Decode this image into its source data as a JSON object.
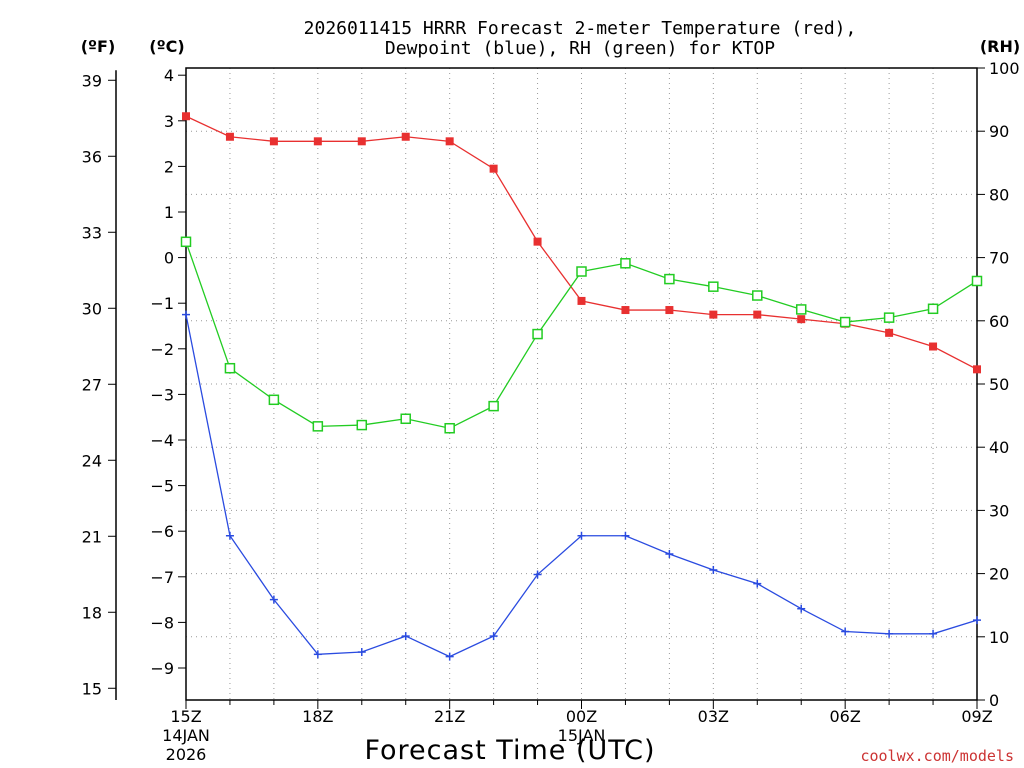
{
  "title": {
    "line1": "2026011415 HRRR Forecast 2-meter Temperature (red),",
    "line2": "Dewpoint (blue), RH (green) for KTOP"
  },
  "units": {
    "left_outer": "(ºF)",
    "left_inner": "(ºC)",
    "right": "(RH)"
  },
  "xlabel": "Forecast Time (UTC)",
  "credit": "coolwx.com/models",
  "colors": {
    "temperature": "#e83030",
    "dewpoint": "#2a4be0",
    "rh": "#22cc22",
    "credit": "#cc3333"
  },
  "chart_data": {
    "type": "line",
    "x": [
      "15Z",
      "16Z",
      "17Z",
      "18Z",
      "19Z",
      "20Z",
      "21Z",
      "22Z",
      "23Z",
      "00Z",
      "01Z",
      "02Z",
      "03Z",
      "04Z",
      "05Z",
      "06Z",
      "07Z",
      "08Z",
      "09Z"
    ],
    "x_tick_labels": [
      {
        "index": 0,
        "label": "15Z",
        "date": "14JAN",
        "year": "2026"
      },
      {
        "index": 3,
        "label": "18Z"
      },
      {
        "index": 6,
        "label": "21Z"
      },
      {
        "index": 9,
        "label": "00Z",
        "date": "15JAN"
      },
      {
        "index": 12,
        "label": "03Z"
      },
      {
        "index": 15,
        "label": "06Z"
      },
      {
        "index": 18,
        "label": "09Z"
      }
    ],
    "y_celsius": {
      "range": [
        -9.75,
        4.2
      ],
      "ticks": [
        4,
        3,
        2,
        1,
        0,
        -1,
        -2,
        -3,
        -4,
        -5,
        -6,
        -7,
        -8,
        -9
      ]
    },
    "y_fahrenheit": {
      "ticks": [
        39,
        36,
        33,
        30,
        27,
        24,
        21,
        18,
        15
      ]
    },
    "y_rh": {
      "range": [
        0,
        100
      ],
      "ticks": [
        0,
        10,
        20,
        30,
        40,
        50,
        60,
        70,
        80,
        90,
        100
      ]
    },
    "grid": true,
    "series": [
      {
        "name": "Temperature",
        "axis": "celsius",
        "color": "#e83030",
        "marker": "filled-square",
        "values": [
          3.1,
          2.65,
          2.55,
          2.55,
          2.55,
          2.65,
          2.55,
          1.95,
          0.35,
          -0.95,
          -1.15,
          -1.15,
          -1.25,
          -1.25,
          -1.35,
          -1.45,
          -1.65,
          -1.95,
          -2.45
        ]
      },
      {
        "name": "Dewpoint",
        "axis": "celsius",
        "color": "#2a4be0",
        "marker": "plus",
        "values": [
          -1.25,
          -6.1,
          -7.5,
          -8.7,
          -8.65,
          -8.3,
          -8.75,
          -8.3,
          -6.95,
          -6.1,
          -6.1,
          -6.5,
          -6.85,
          -7.15,
          -7.7,
          -8.2,
          -8.25,
          -8.25,
          -7.95
        ]
      },
      {
        "name": "RH",
        "axis": "rh",
        "color": "#22cc22",
        "marker": "hollow-square",
        "values": [
          72.5,
          52.5,
          47.5,
          43.3,
          43.5,
          44.5,
          43.0,
          46.5,
          57.9,
          67.8,
          69.1,
          66.6,
          65.4,
          64.0,
          61.8,
          59.8,
          60.5,
          61.9,
          66.3
        ]
      }
    ]
  }
}
